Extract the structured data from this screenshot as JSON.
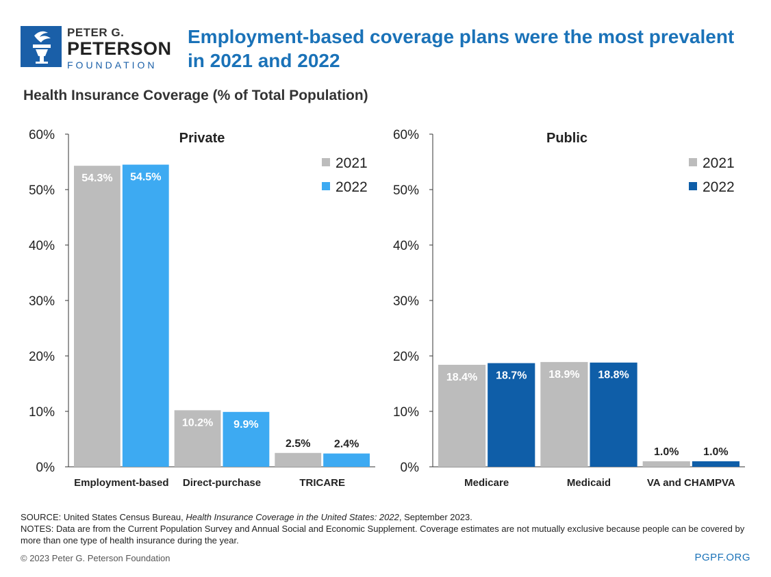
{
  "header": {
    "logo_line1": "PETER G.",
    "logo_line2": "PETERSON",
    "logo_line3": "FOUNDATION",
    "title_line1": "Employment-based coverage plans were the most prevalent",
    "title_line2": "in 2021 and 2022",
    "subtitle": "Health Insurance Coverage (% of Total Population)"
  },
  "chart_data": [
    {
      "type": "bar",
      "title": "Private",
      "categories": [
        "Employment-based",
        "Direct-purchase",
        "TRICARE"
      ],
      "series": [
        {
          "name": "2021",
          "values": [
            54.3,
            10.2,
            2.5
          ],
          "color": "#bcbcbc"
        },
        {
          "name": "2022",
          "values": [
            54.5,
            9.9,
            2.4
          ],
          "color": "#3daaf2"
        }
      ],
      "data_labels": [
        [
          "54.3%",
          "10.2%",
          "2.5%"
        ],
        [
          "54.5%",
          "9.9%",
          "2.4%"
        ]
      ],
      "ylim": [
        0,
        60
      ],
      "yticks": [
        "0%",
        "10%",
        "20%",
        "30%",
        "40%",
        "50%",
        "60%"
      ],
      "legend": "top-right",
      "grid": false
    },
    {
      "type": "bar",
      "title": "Public",
      "categories": [
        "Medicare",
        "Medicaid",
        "VA and CHAMPVA"
      ],
      "series": [
        {
          "name": "2021",
          "values": [
            18.4,
            18.9,
            1.0
          ],
          "color": "#bcbcbc"
        },
        {
          "name": "2022",
          "values": [
            18.7,
            18.8,
            1.0
          ],
          "color": "#0f5ea8"
        }
      ],
      "data_labels": [
        [
          "18.4%",
          "18.9%",
          "1.0%"
        ],
        [
          "18.7%",
          "18.8%",
          "1.0%"
        ]
      ],
      "ylim": [
        0,
        60
      ],
      "yticks": [
        "0%",
        "10%",
        "20%",
        "30%",
        "40%",
        "50%",
        "60%"
      ],
      "legend": "top-right",
      "grid": false
    }
  ],
  "footer": {
    "source_label": "SOURCE: United States Census Bureau,",
    "source_title": "Health Insurance Coverage in the United States: 2022",
    "source_rest": ", September 2023.",
    "notes": "NOTES: Data are from the Current Population Survey and Annual Social and Economic Supplement. Coverage estimates are not mutually exclusive because people can be covered by more than one type of health insurance during the year.",
    "copyright": "© 2023 Peter G. Peterson Foundation",
    "site": "PGPF.ORG"
  }
}
